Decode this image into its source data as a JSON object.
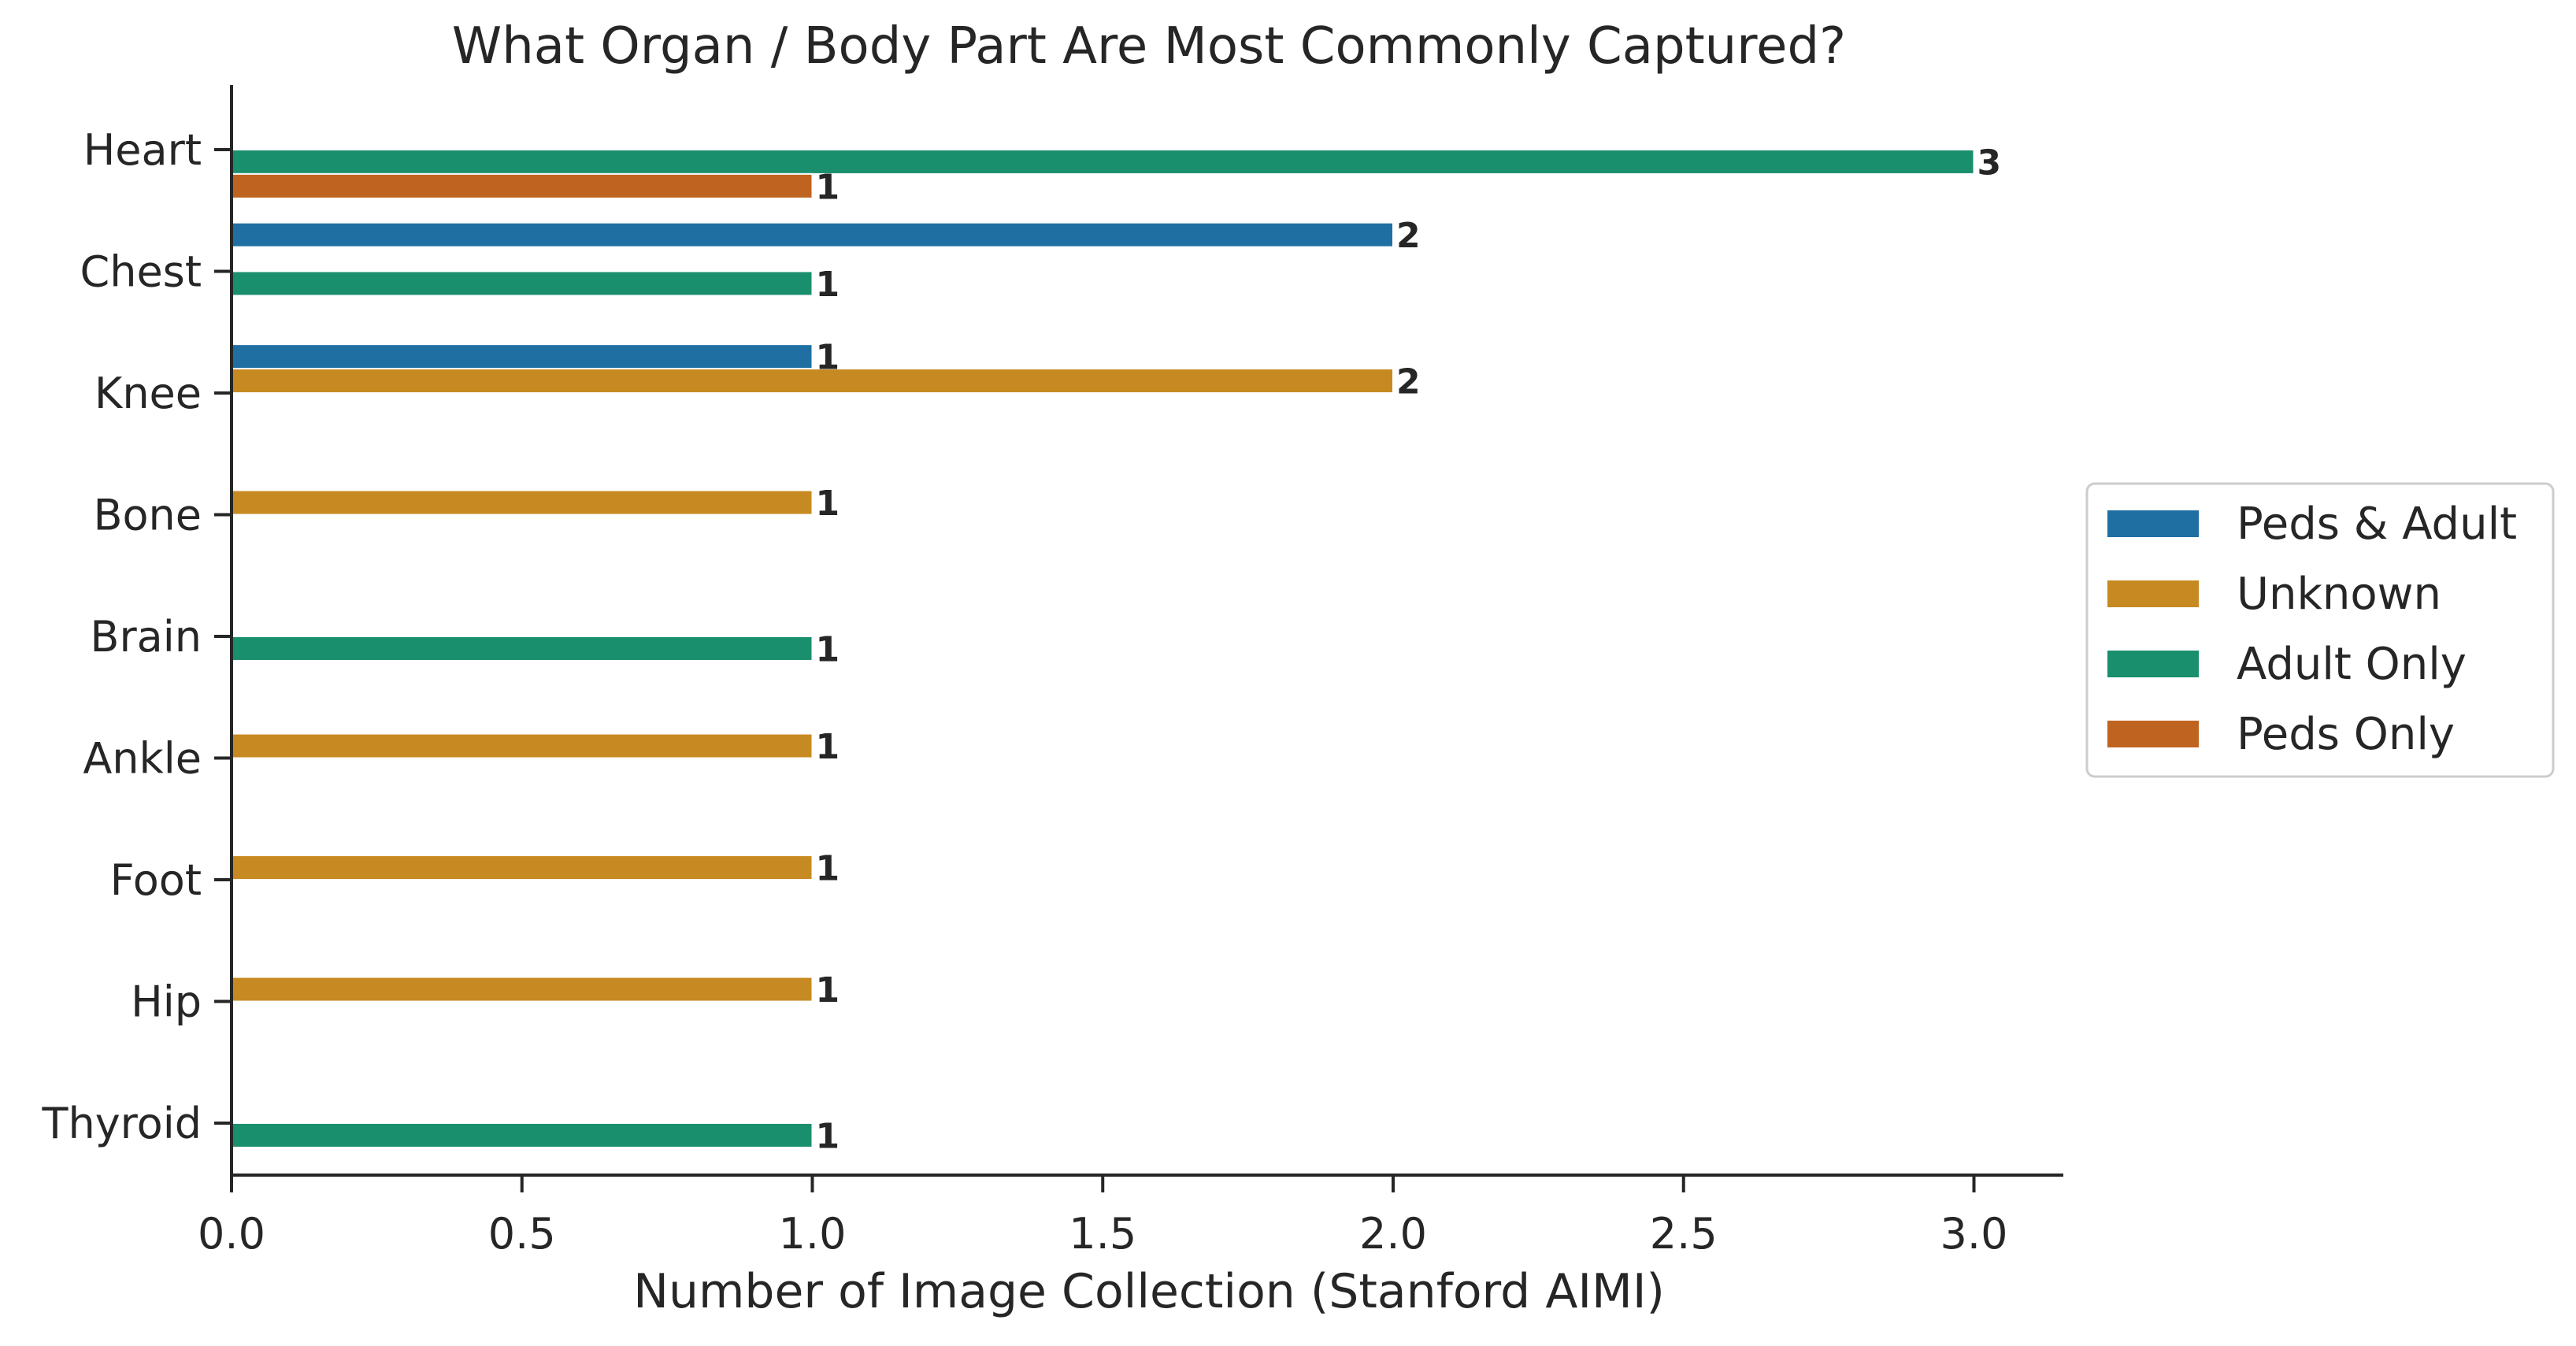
{
  "chart_data": {
    "type": "bar",
    "orientation": "horizontal",
    "title": "What Organ / Body Part Are Most Commonly Captured?",
    "xlabel": "Number of Image Collection (Stanford AIMI)",
    "ylabel": "",
    "xlim": [
      0,
      3.15
    ],
    "xticks": [
      0.0,
      0.5,
      1.0,
      1.5,
      2.0,
      2.5,
      3.0
    ],
    "xtick_labels": [
      "0.0",
      "0.5",
      "1.0",
      "1.5",
      "2.0",
      "2.5",
      "3.0"
    ],
    "categories": [
      "Heart",
      "Chest",
      "Knee",
      "Bone",
      "Brain",
      "Ankle",
      "Foot",
      "Hip",
      "Thyroid"
    ],
    "series": [
      {
        "name": "Peds & Adult",
        "color": "#1f6fa3",
        "values": [
          null,
          2,
          1,
          null,
          null,
          null,
          null,
          null,
          null
        ]
      },
      {
        "name": "Unknown",
        "color": "#c78a22",
        "values": [
          null,
          null,
          2,
          1,
          null,
          1,
          1,
          1,
          null
        ]
      },
      {
        "name": "Adult Only",
        "color": "#1a8f6e",
        "values": [
          3,
          1,
          null,
          null,
          1,
          null,
          null,
          null,
          1
        ]
      },
      {
        "name": "Peds Only",
        "color": "#bf6420",
        "values": [
          1,
          null,
          null,
          null,
          null,
          null,
          null,
          null,
          null
        ]
      }
    ],
    "data_labels": true,
    "grid": false,
    "legend_position": "center-right"
  }
}
